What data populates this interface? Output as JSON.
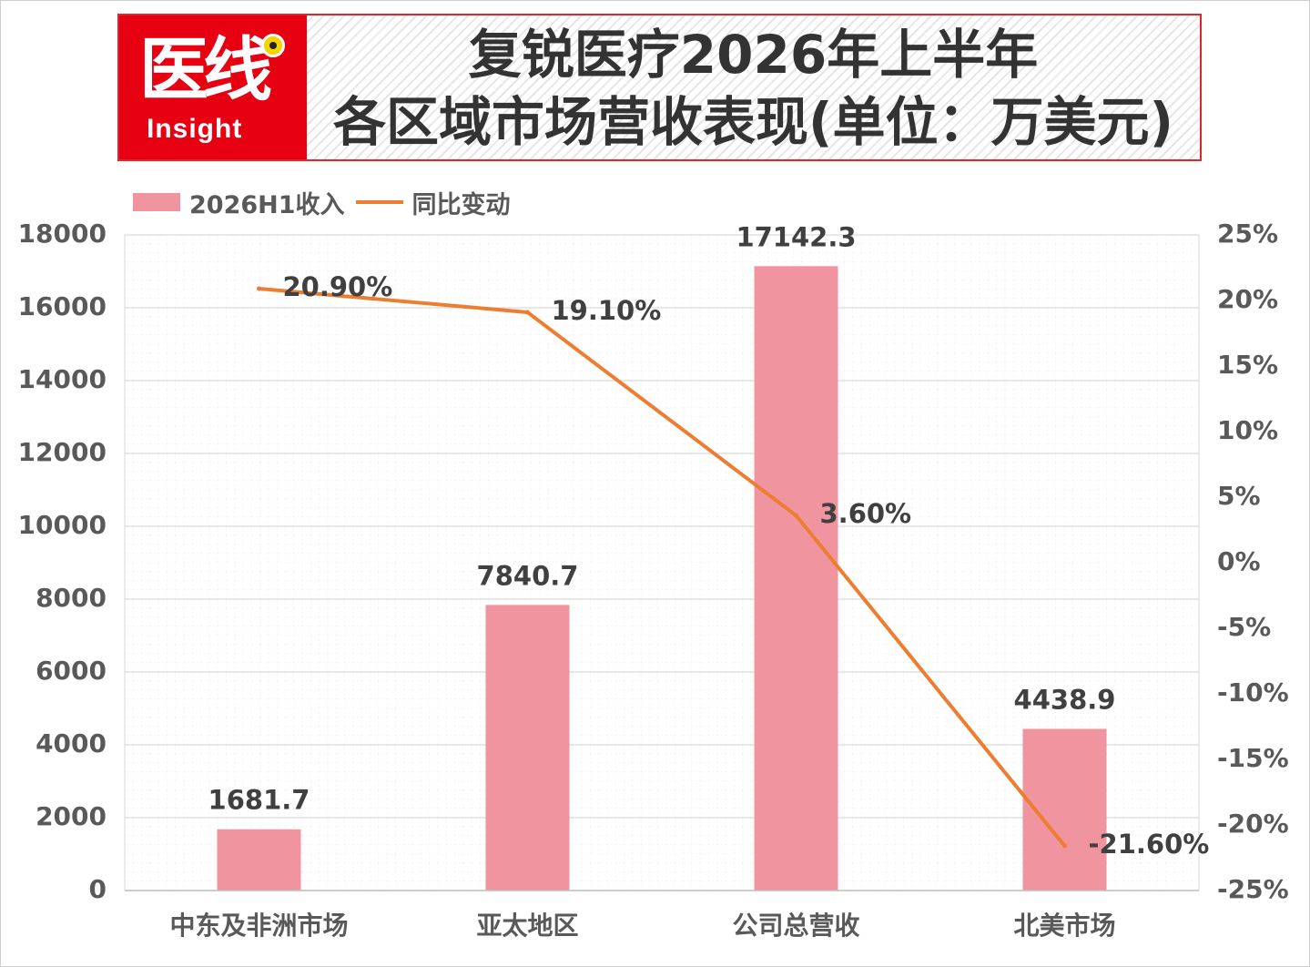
{
  "header": {
    "logo_main": "医线",
    "logo_sub": "Insight",
    "title_line1": "复锐医疗2026年上半年",
    "title_line2": "各区域市场营收表现(单位：万美元)"
  },
  "colors": {
    "bar": "#f0959f",
    "line": "#ed7d31",
    "brand_red": "#e60012"
  },
  "chart_data": {
    "type": "bar",
    "categories": [
      "中东及非洲市场",
      "亚太地区",
      "公司总营收",
      "北美市场"
    ],
    "series": [
      {
        "name": "2026H1收入",
        "type": "bar",
        "axis": "left",
        "values": [
          1681.7,
          7840.7,
          17142.3,
          4438.9
        ],
        "labels": [
          "1681.7",
          "7840.7",
          "17142.3",
          "4438.9"
        ]
      },
      {
        "name": "同比变动",
        "type": "line",
        "axis": "right",
        "values": [
          20.9,
          19.1,
          3.6,
          -21.6
        ],
        "labels": [
          "20.90%",
          "19.10%",
          "3.60%",
          "-21.60%"
        ]
      }
    ],
    "y_left": {
      "range": [
        0,
        18000
      ],
      "ticks": [
        "0",
        "2000",
        "4000",
        "6000",
        "8000",
        "10000",
        "12000",
        "14000",
        "16000",
        "18000"
      ]
    },
    "y_right": {
      "range": [
        -25,
        25
      ],
      "ticks": [
        "-25%",
        "-20%",
        "-15%",
        "-10%",
        "-5%",
        "0%",
        "5%",
        "10%",
        "15%",
        "20%",
        "25%"
      ]
    },
    "legend_position": "top-left",
    "grid": true
  }
}
